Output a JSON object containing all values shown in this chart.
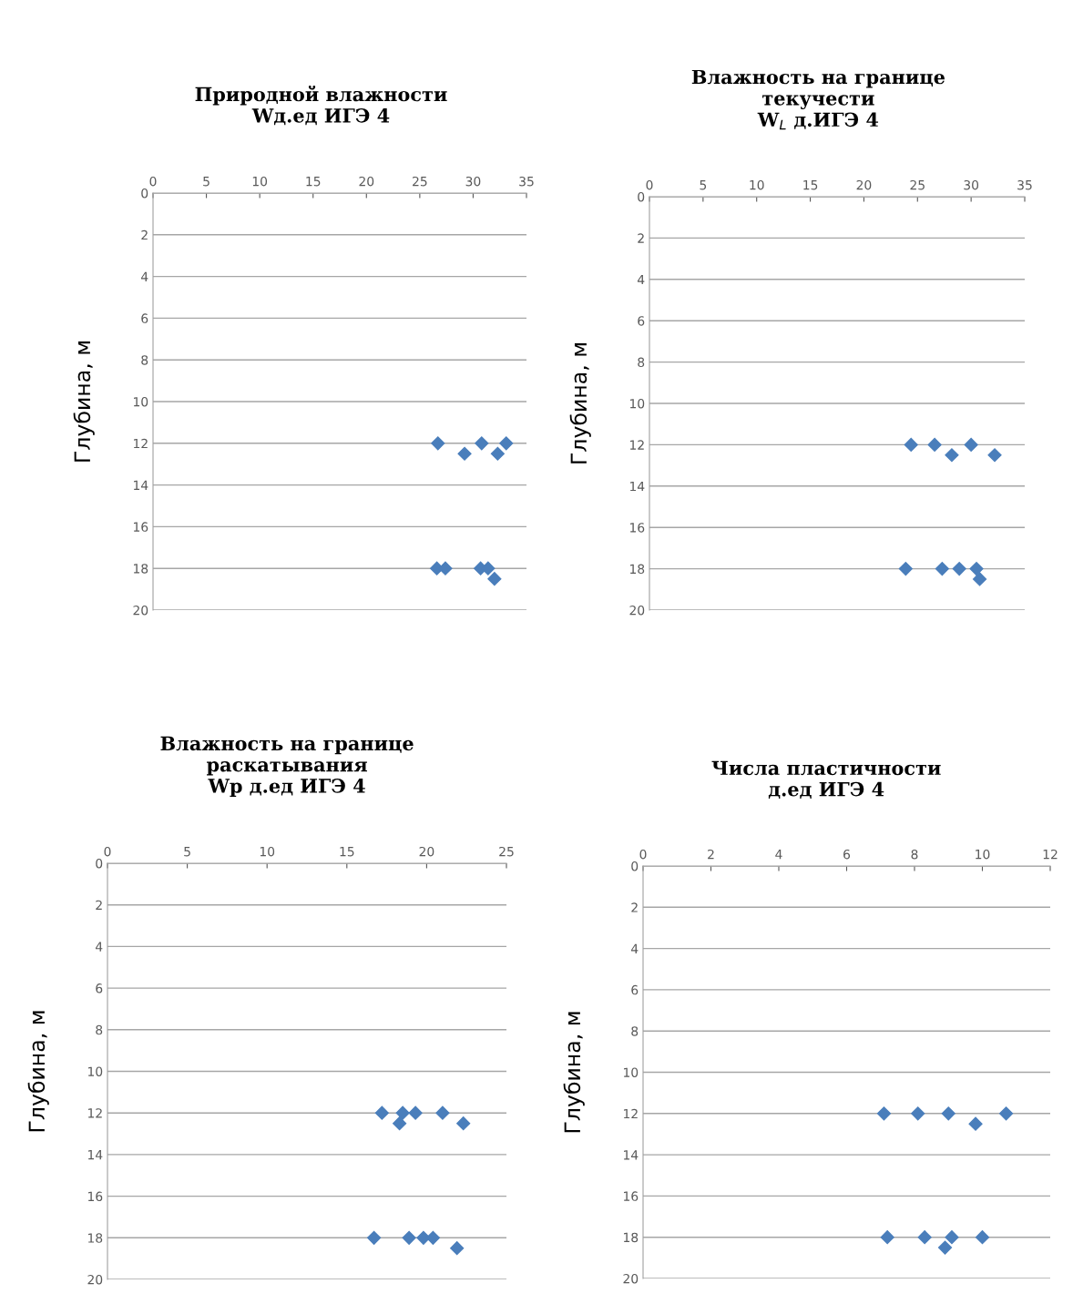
{
  "chart_data": [
    {
      "type": "scatter",
      "title": "Природной влажности\nWд.ед ИГЭ 4",
      "ylabel": "Глубина, м",
      "xlim": [
        0,
        35
      ],
      "xticks": [
        0,
        5,
        10,
        15,
        20,
        25,
        30,
        35
      ],
      "ylim": [
        20,
        0
      ],
      "yticks": [
        0,
        2,
        4,
        6,
        8,
        10,
        12,
        14,
        16,
        18,
        20
      ],
      "grid": "y",
      "marker": "diamond",
      "series": [
        {
          "color": "#4a7ebb",
          "x": [
            26.7,
            29.2,
            30.8,
            32.3,
            33.1,
            26.6,
            27.4,
            30.7,
            31.4,
            32.0
          ],
          "values": [
            12,
            12.5,
            12,
            12.5,
            12,
            18,
            18,
            18,
            18,
            18.5
          ]
        }
      ]
    },
    {
      "type": "scatter",
      "title": "Влажность на границе\nтекучести\nW$_{L}$ д.ИГЭ 4",
      "ylabel": "Глубина, м",
      "xlim": [
        0,
        35
      ],
      "xticks": [
        0,
        5,
        10,
        15,
        20,
        25,
        30,
        35
      ],
      "ylim": [
        20,
        0
      ],
      "yticks": [
        0,
        2,
        4,
        6,
        8,
        10,
        12,
        14,
        16,
        18,
        20
      ],
      "grid": "y",
      "marker": "diamond",
      "series": [
        {
          "color": "#4a7ebb",
          "x": [
            24.4,
            26.6,
            28.2,
            30.0,
            32.2,
            23.9,
            27.3,
            28.9,
            30.5,
            30.8
          ],
          "values": [
            12,
            12,
            12.5,
            12,
            12.5,
            18,
            18,
            18,
            18,
            18.5
          ]
        }
      ]
    },
    {
      "type": "scatter",
      "title": "Влажность на границе\nраскатывания\nWp д.ед ИГЭ 4",
      "ylabel": "Глубина, м",
      "xlim": [
        0,
        25
      ],
      "xticks": [
        0,
        5,
        10,
        15,
        20,
        25
      ],
      "ylim": [
        20,
        0
      ],
      "yticks": [
        0,
        2,
        4,
        6,
        8,
        10,
        12,
        14,
        16,
        18,
        20
      ],
      "grid": "y",
      "marker": "diamond",
      "series": [
        {
          "color": "#4a7ebb",
          "x": [
            17.2,
            18.5,
            18.3,
            19.3,
            21.0,
            22.3,
            16.7,
            18.9,
            19.8,
            20.4,
            21.9
          ],
          "values": [
            12,
            12,
            12.5,
            12,
            12,
            12.5,
            18,
            18,
            18,
            18,
            18.5
          ]
        }
      ]
    },
    {
      "type": "scatter",
      "title": "Числа пластичности\nд.ед ИГЭ 4",
      "ylabel": "Глубина, м",
      "xlim": [
        0,
        12
      ],
      "xticks": [
        0,
        2,
        4,
        6,
        8,
        10,
        12
      ],
      "ylim": [
        20,
        0
      ],
      "yticks": [
        0,
        2,
        4,
        6,
        8,
        10,
        12,
        14,
        16,
        18,
        20
      ],
      "grid": "y",
      "marker": "diamond",
      "series": [
        {
          "color": "#4a7ebb",
          "x": [
            7.1,
            8.1,
            9.0,
            9.8,
            10.7,
            7.2,
            8.3,
            9.1,
            10.0,
            8.9
          ],
          "values": [
            12,
            12,
            12,
            12.5,
            12,
            18,
            18,
            18,
            18,
            18.5
          ]
        }
      ]
    }
  ]
}
